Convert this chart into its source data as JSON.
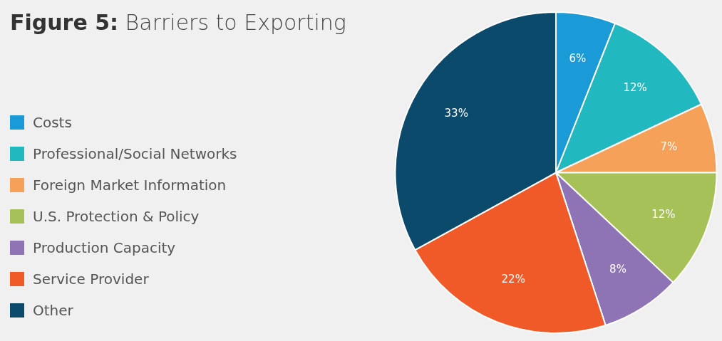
{
  "chart_data": {
    "type": "pie",
    "title": "Figure 5: Barriers to Exporting",
    "categories": [
      "Costs",
      "Professional/Social Networks",
      "Foreign Market Information",
      "U.S. Protection & Policy",
      "Production Capacity",
      "Service Provider",
      "Other"
    ],
    "values": [
      6,
      12,
      7,
      12,
      8,
      22,
      33
    ],
    "value_labels": [
      "6%",
      "12%",
      "7%",
      "12%",
      "8%",
      "22%",
      "33%"
    ],
    "colors": [
      "#1a9bd7",
      "#22b8c0",
      "#f6a15a",
      "#a6c157",
      "#8e73b5",
      "#f05a28",
      "#0b4a6b"
    ],
    "legend": "left"
  }
}
